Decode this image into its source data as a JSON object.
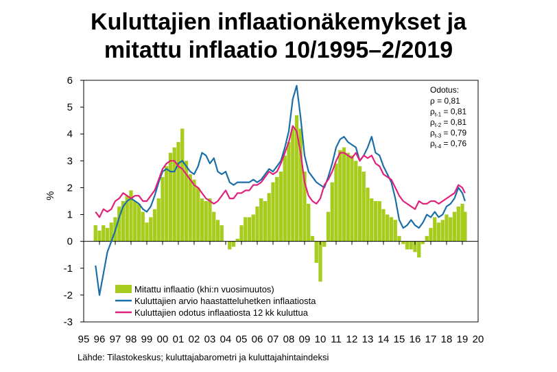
{
  "title_line1": "Kuluttajien inflaationäkemykset ja",
  "title_line2": "mitattu inflaatio 10/1995–2/2019",
  "source": "Lähde: Tilastokeskus;  kuluttajabarometri  ja kuluttajahintaindeksi",
  "chart_data": {
    "type": "bar+line",
    "ylabel": "%",
    "ylim": [
      -3,
      6
    ],
    "yticks": [
      "-3",
      "-2",
      "-1",
      "0",
      "1",
      "2",
      "3",
      "4",
      "5",
      "6"
    ],
    "xlim": [
      1995,
      2020
    ],
    "xticks": [
      "95",
      "96",
      "97",
      "98",
      "99",
      "00",
      "01",
      "02",
      "03",
      "04",
      "05",
      "06",
      "07",
      "08",
      "09",
      "10",
      "11",
      "12",
      "13",
      "14",
      "15",
      "16",
      "17",
      "18",
      "19",
      "20"
    ],
    "legend_position": "bottom-left",
    "colors": {
      "bars": "#a8cc1e",
      "perceived": "#1a6ea8",
      "expected": "#e0207a"
    },
    "annotation": {
      "header": "Odotus:",
      "lines": [
        {
          "sym": "ρ",
          "sub": "",
          "text": " = 0,81"
        },
        {
          "sym": "ρ",
          "sub": "t-1",
          "text": " = 0,81"
        },
        {
          "sym": "ρ",
          "sub": "t-2",
          "text": " = 0,81"
        },
        {
          "sym": "ρ",
          "sub": "t-3",
          "text": " = 0,79"
        },
        {
          "sym": "ρ",
          "sub": "t-4",
          "text": " = 0,76"
        }
      ]
    },
    "series": [
      {
        "name": "Mitattu inflaatio (khi:n vuosimuutos)",
        "kind": "bar",
        "points": [
          [
            1995.75,
            0.6
          ],
          [
            1996.0,
            0.4
          ],
          [
            1996.25,
            0.6
          ],
          [
            1996.5,
            0.5
          ],
          [
            1996.75,
            0.7
          ],
          [
            1997.0,
            0.9
          ],
          [
            1997.25,
            1.3
          ],
          [
            1997.5,
            1.5
          ],
          [
            1997.75,
            1.7
          ],
          [
            1998.0,
            1.9
          ],
          [
            1998.25,
            1.5
          ],
          [
            1998.5,
            1.4
          ],
          [
            1998.75,
            1.1
          ],
          [
            1999.0,
            0.7
          ],
          [
            1999.25,
            0.9
          ],
          [
            1999.5,
            1.2
          ],
          [
            1999.75,
            1.6
          ],
          [
            2000.0,
            2.4
          ],
          [
            2000.25,
            2.8
          ],
          [
            2000.5,
            3.3
          ],
          [
            2000.75,
            3.5
          ],
          [
            2001.0,
            3.7
          ],
          [
            2001.25,
            4.2
          ],
          [
            2001.5,
            3.0
          ],
          [
            2001.75,
            2.5
          ],
          [
            2002.0,
            2.3
          ],
          [
            2002.25,
            2.0
          ],
          [
            2002.5,
            1.6
          ],
          [
            2002.75,
            1.5
          ],
          [
            2003.0,
            1.6
          ],
          [
            2003.25,
            1.1
          ],
          [
            2003.5,
            0.8
          ],
          [
            2003.75,
            0.6
          ],
          [
            2004.0,
            0.0
          ],
          [
            2004.25,
            -0.3
          ],
          [
            2004.5,
            -0.2
          ],
          [
            2004.75,
            0.1
          ],
          [
            2005.0,
            0.6
          ],
          [
            2005.25,
            0.9
          ],
          [
            2005.5,
            0.9
          ],
          [
            2005.75,
            1.0
          ],
          [
            2006.0,
            1.3
          ],
          [
            2006.25,
            1.6
          ],
          [
            2006.5,
            1.5
          ],
          [
            2006.75,
            1.8
          ],
          [
            2007.0,
            2.2
          ],
          [
            2007.25,
            2.4
          ],
          [
            2007.5,
            2.6
          ],
          [
            2007.75,
            3.2
          ],
          [
            2008.0,
            3.7
          ],
          [
            2008.25,
            4.2
          ],
          [
            2008.5,
            4.7
          ],
          [
            2008.75,
            4.2
          ],
          [
            2009.0,
            2.6
          ],
          [
            2009.25,
            1.4
          ],
          [
            2009.5,
            0.2
          ],
          [
            2009.75,
            -0.8
          ],
          [
            2010.0,
            -1.5
          ],
          [
            2010.25,
            -0.2
          ],
          [
            2010.5,
            1.1
          ],
          [
            2010.75,
            2.2
          ],
          [
            2011.0,
            2.9
          ],
          [
            2011.25,
            3.4
          ],
          [
            2011.5,
            3.5
          ],
          [
            2011.75,
            3.3
          ],
          [
            2012.0,
            3.2
          ],
          [
            2012.25,
            3.0
          ],
          [
            2012.5,
            2.8
          ],
          [
            2012.75,
            2.6
          ],
          [
            2013.0,
            2.0
          ],
          [
            2013.25,
            1.6
          ],
          [
            2013.5,
            1.5
          ],
          [
            2013.75,
            1.5
          ],
          [
            2014.0,
            1.2
          ],
          [
            2014.25,
            1.0
          ],
          [
            2014.5,
            0.9
          ],
          [
            2014.75,
            0.8
          ],
          [
            2015.0,
            0.2
          ],
          [
            2015.25,
            -0.1
          ],
          [
            2015.5,
            -0.3
          ],
          [
            2015.75,
            -0.3
          ],
          [
            2016.0,
            -0.4
          ],
          [
            2016.25,
            -0.6
          ],
          [
            2016.5,
            -0.1
          ],
          [
            2016.75,
            0.2
          ],
          [
            2017.0,
            0.5
          ],
          [
            2017.25,
            0.9
          ],
          [
            2017.5,
            0.7
          ],
          [
            2017.75,
            0.8
          ],
          [
            2018.0,
            1.0
          ],
          [
            2018.25,
            0.9
          ],
          [
            2018.5,
            1.1
          ],
          [
            2018.75,
            1.3
          ],
          [
            2019.0,
            1.4
          ],
          [
            2019.17,
            1.1
          ]
        ]
      },
      {
        "name": "Kuluttajien arvio haastatteluhetken inflaatiosta",
        "kind": "line",
        "points": [
          [
            1995.75,
            -0.9
          ],
          [
            1996.0,
            -2.0
          ],
          [
            1996.25,
            -1.2
          ],
          [
            1996.5,
            -0.4
          ],
          [
            1996.75,
            0.0
          ],
          [
            1997.0,
            0.4
          ],
          [
            1997.25,
            0.9
          ],
          [
            1997.5,
            1.3
          ],
          [
            1997.75,
            1.5
          ],
          [
            1998.0,
            1.6
          ],
          [
            1998.25,
            1.5
          ],
          [
            1998.5,
            1.4
          ],
          [
            1998.75,
            1.2
          ],
          [
            1999.0,
            1.1
          ],
          [
            1999.25,
            1.3
          ],
          [
            1999.5,
            1.7
          ],
          [
            1999.75,
            2.2
          ],
          [
            2000.0,
            2.6
          ],
          [
            2000.25,
            2.7
          ],
          [
            2000.5,
            2.6
          ],
          [
            2000.75,
            2.6
          ],
          [
            2001.0,
            2.9
          ],
          [
            2001.25,
            3.0
          ],
          [
            2001.5,
            2.8
          ],
          [
            2001.75,
            2.6
          ],
          [
            2002.0,
            2.5
          ],
          [
            2002.25,
            2.8
          ],
          [
            2002.5,
            3.3
          ],
          [
            2002.75,
            3.2
          ],
          [
            2003.0,
            2.9
          ],
          [
            2003.25,
            3.1
          ],
          [
            2003.5,
            2.6
          ],
          [
            2003.75,
            2.5
          ],
          [
            2004.0,
            2.6
          ],
          [
            2004.25,
            2.2
          ],
          [
            2004.5,
            2.1
          ],
          [
            2004.75,
            2.2
          ],
          [
            2005.0,
            2.2
          ],
          [
            2005.25,
            2.2
          ],
          [
            2005.5,
            2.2
          ],
          [
            2005.75,
            2.3
          ],
          [
            2006.0,
            2.2
          ],
          [
            2006.25,
            2.3
          ],
          [
            2006.5,
            2.5
          ],
          [
            2006.75,
            2.7
          ],
          [
            2007.0,
            2.6
          ],
          [
            2007.25,
            2.8
          ],
          [
            2007.5,
            3.0
          ],
          [
            2007.75,
            3.5
          ],
          [
            2008.0,
            4.1
          ],
          [
            2008.25,
            5.3
          ],
          [
            2008.5,
            5.8
          ],
          [
            2008.75,
            4.6
          ],
          [
            2009.0,
            3.2
          ],
          [
            2009.25,
            2.6
          ],
          [
            2009.5,
            2.4
          ],
          [
            2009.75,
            2.2
          ],
          [
            2010.0,
            2.1
          ],
          [
            2010.25,
            2.0
          ],
          [
            2010.5,
            2.4
          ],
          [
            2010.75,
            2.9
          ],
          [
            2011.0,
            3.5
          ],
          [
            2011.25,
            3.8
          ],
          [
            2011.5,
            3.9
          ],
          [
            2011.75,
            3.7
          ],
          [
            2012.0,
            3.6
          ],
          [
            2012.25,
            3.5
          ],
          [
            2012.5,
            3.0
          ],
          [
            2012.75,
            3.2
          ],
          [
            2013.0,
            3.5
          ],
          [
            2013.25,
            3.9
          ],
          [
            2013.5,
            3.3
          ],
          [
            2013.75,
            3.2
          ],
          [
            2014.0,
            2.8
          ],
          [
            2014.25,
            2.5
          ],
          [
            2014.5,
            2.2
          ],
          [
            2014.75,
            1.6
          ],
          [
            2015.0,
            0.8
          ],
          [
            2015.25,
            0.5
          ],
          [
            2015.5,
            0.6
          ],
          [
            2015.75,
            0.8
          ],
          [
            2016.0,
            0.6
          ],
          [
            2016.25,
            0.5
          ],
          [
            2016.5,
            0.7
          ],
          [
            2016.75,
            1.0
          ],
          [
            2017.0,
            0.9
          ],
          [
            2017.25,
            1.1
          ],
          [
            2017.5,
            0.9
          ],
          [
            2017.75,
            1.0
          ],
          [
            2018.0,
            1.3
          ],
          [
            2018.25,
            1.4
          ],
          [
            2018.5,
            1.6
          ],
          [
            2018.75,
            2.0
          ],
          [
            2019.0,
            1.8
          ],
          [
            2019.17,
            1.5
          ]
        ]
      },
      {
        "name": "Kuluttajien odotus inflaatiosta 12 kk kuluttua",
        "kind": "line",
        "points": [
          [
            1995.75,
            1.1
          ],
          [
            1996.0,
            0.9
          ],
          [
            1996.25,
            1.2
          ],
          [
            1996.5,
            1.1
          ],
          [
            1996.75,
            1.2
          ],
          [
            1997.0,
            1.5
          ],
          [
            1997.25,
            1.6
          ],
          [
            1997.5,
            1.8
          ],
          [
            1997.75,
            1.7
          ],
          [
            1998.0,
            1.6
          ],
          [
            1998.25,
            1.7
          ],
          [
            1998.5,
            1.7
          ],
          [
            1998.75,
            1.5
          ],
          [
            1999.0,
            1.5
          ],
          [
            1999.25,
            1.7
          ],
          [
            1999.5,
            1.9
          ],
          [
            1999.75,
            2.3
          ],
          [
            2000.0,
            2.7
          ],
          [
            2000.25,
            2.9
          ],
          [
            2000.5,
            3.0
          ],
          [
            2000.75,
            3.0
          ],
          [
            2001.0,
            2.8
          ],
          [
            2001.25,
            2.7
          ],
          [
            2001.5,
            2.5
          ],
          [
            2001.75,
            2.3
          ],
          [
            2002.0,
            2.1
          ],
          [
            2002.25,
            2.0
          ],
          [
            2002.5,
            1.8
          ],
          [
            2002.75,
            1.6
          ],
          [
            2003.0,
            1.5
          ],
          [
            2003.25,
            1.4
          ],
          [
            2003.5,
            1.5
          ],
          [
            2003.75,
            1.7
          ],
          [
            2004.0,
            1.9
          ],
          [
            2004.25,
            1.6
          ],
          [
            2004.5,
            1.6
          ],
          [
            2004.75,
            1.8
          ],
          [
            2005.0,
            1.8
          ],
          [
            2005.25,
            1.9
          ],
          [
            2005.5,
            1.9
          ],
          [
            2005.75,
            2.1
          ],
          [
            2006.0,
            2.1
          ],
          [
            2006.25,
            2.2
          ],
          [
            2006.5,
            2.4
          ],
          [
            2006.75,
            2.6
          ],
          [
            2007.0,
            2.5
          ],
          [
            2007.25,
            2.6
          ],
          [
            2007.5,
            2.9
          ],
          [
            2007.75,
            3.3
          ],
          [
            2008.0,
            3.7
          ],
          [
            2008.25,
            4.3
          ],
          [
            2008.5,
            4.1
          ],
          [
            2008.75,
            3.3
          ],
          [
            2009.0,
            2.2
          ],
          [
            2009.25,
            1.7
          ],
          [
            2009.5,
            1.5
          ],
          [
            2009.75,
            1.4
          ],
          [
            2010.0,
            1.6
          ],
          [
            2010.25,
            2.1
          ],
          [
            2010.5,
            2.3
          ],
          [
            2010.75,
            2.6
          ],
          [
            2011.0,
            3.0
          ],
          [
            2011.25,
            3.3
          ],
          [
            2011.5,
            3.3
          ],
          [
            2011.75,
            3.2
          ],
          [
            2012.0,
            3.1
          ],
          [
            2012.25,
            3.3
          ],
          [
            2012.5,
            3.0
          ],
          [
            2012.75,
            3.2
          ],
          [
            2013.0,
            3.1
          ],
          [
            2013.25,
            3.2
          ],
          [
            2013.5,
            2.9
          ],
          [
            2013.75,
            2.8
          ],
          [
            2014.0,
            2.5
          ],
          [
            2014.25,
            2.4
          ],
          [
            2014.5,
            2.3
          ],
          [
            2014.75,
            2.0
          ],
          [
            2015.0,
            1.7
          ],
          [
            2015.25,
            1.5
          ],
          [
            2015.5,
            1.4
          ],
          [
            2015.75,
            1.3
          ],
          [
            2016.0,
            1.2
          ],
          [
            2016.25,
            1.5
          ],
          [
            2016.5,
            1.4
          ],
          [
            2016.75,
            1.4
          ],
          [
            2017.0,
            1.5
          ],
          [
            2017.25,
            1.5
          ],
          [
            2017.5,
            1.4
          ],
          [
            2017.75,
            1.5
          ],
          [
            2018.0,
            1.6
          ],
          [
            2018.25,
            1.7
          ],
          [
            2018.5,
            1.8
          ],
          [
            2018.75,
            2.1
          ],
          [
            2019.0,
            2.0
          ],
          [
            2019.17,
            1.8
          ]
        ]
      }
    ]
  }
}
